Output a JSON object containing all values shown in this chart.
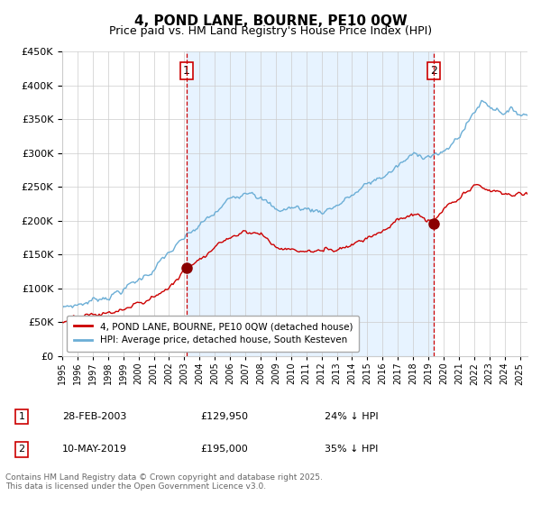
{
  "title": "4, POND LANE, BOURNE, PE10 0QW",
  "subtitle": "Price paid vs. HM Land Registry's House Price Index (HPI)",
  "title_fontsize": 11,
  "subtitle_fontsize": 9,
  "ylim": [
    0,
    450000
  ],
  "yticks": [
    0,
    50000,
    100000,
    150000,
    200000,
    250000,
    300000,
    350000,
    400000,
    450000
  ],
  "hpi_color": "#6baed6",
  "hpi_fill_color": "#ddeeff",
  "price_color": "#cc0000",
  "marker_color": "#8b0000",
  "vline_color": "#cc0000",
  "grid_color": "#cccccc",
  "background_color": "#ffffff",
  "legend_labels": [
    "4, POND LANE, BOURNE, PE10 0QW (detached house)",
    "HPI: Average price, detached house, South Kesteven"
  ],
  "sale1_label": "1",
  "sale1_date": "28-FEB-2003",
  "sale1_price": "£129,950",
  "sale1_note": "24% ↓ HPI",
  "sale1_x": 2003.15,
  "sale1_y": 129950,
  "sale2_label": "2",
  "sale2_date": "10-MAY-2019",
  "sale2_price": "£195,000",
  "sale2_note": "35% ↓ HPI",
  "sale2_x": 2019.37,
  "sale2_y": 195000,
  "footer": "Contains HM Land Registry data © Crown copyright and database right 2025.\nThis data is licensed under the Open Government Licence v3.0.",
  "xmin": 1995,
  "xmax": 2025.5
}
